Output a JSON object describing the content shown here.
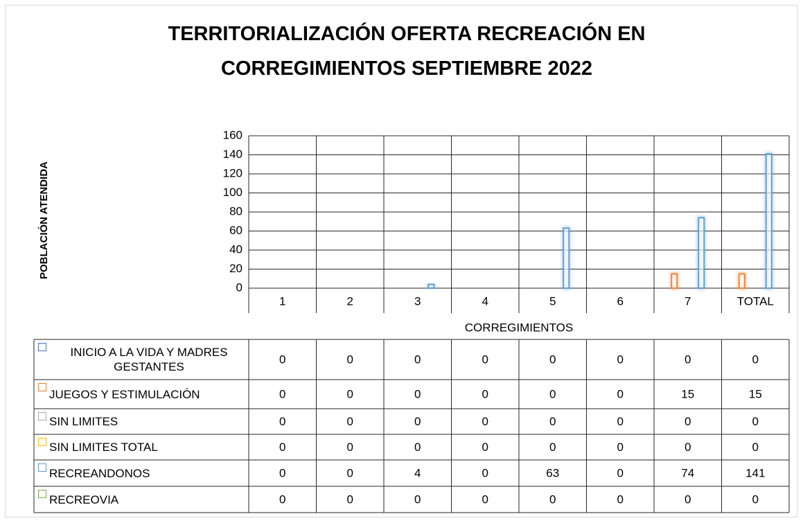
{
  "chart_data": {
    "type": "bar",
    "title": "TERRITORIALIZACIÓN OFERTA RECREACIÓN EN CORREGIMIENTOS SEPTIEMBRE 2022",
    "x_label": "CORREGIMIENTOS",
    "y_label": "POBLACIÓN ATENDIDA",
    "categories": [
      "1",
      "2",
      "3",
      "4",
      "5",
      "6",
      "7",
      "TOTAL"
    ],
    "series": [
      {
        "name": "INICIO A LA VIDA Y MADRES GESTANTES",
        "color": "#4472c4",
        "values": [
          0,
          0,
          0,
          0,
          0,
          0,
          0,
          0
        ]
      },
      {
        "name": "JUEGOS Y ESTIMULACIÓN",
        "color": "#ed7d31",
        "values": [
          0,
          0,
          0,
          0,
          0,
          0,
          15,
          15
        ]
      },
      {
        "name": "SIN LIMITES",
        "color": "#a5a5a5",
        "values": [
          0,
          0,
          0,
          0,
          0,
          0,
          0,
          0
        ]
      },
      {
        "name": "SIN LIMITES TOTAL",
        "color": "#ffc000",
        "values": [
          0,
          0,
          0,
          0,
          0,
          0,
          0,
          0
        ]
      },
      {
        "name": "RECREANDONOS",
        "color": "#5b9bd5",
        "values": [
          0,
          0,
          4,
          0,
          63,
          0,
          74,
          141
        ]
      },
      {
        "name": "RECREOVIA",
        "color": "#70ad47",
        "values": [
          0,
          0,
          0,
          0,
          0,
          0,
          0,
          0
        ]
      }
    ],
    "ylim": [
      0,
      160
    ],
    "yticks": [
      0,
      20,
      40,
      60,
      80,
      100,
      120,
      140,
      160
    ],
    "grid": true,
    "data_table": true
  }
}
